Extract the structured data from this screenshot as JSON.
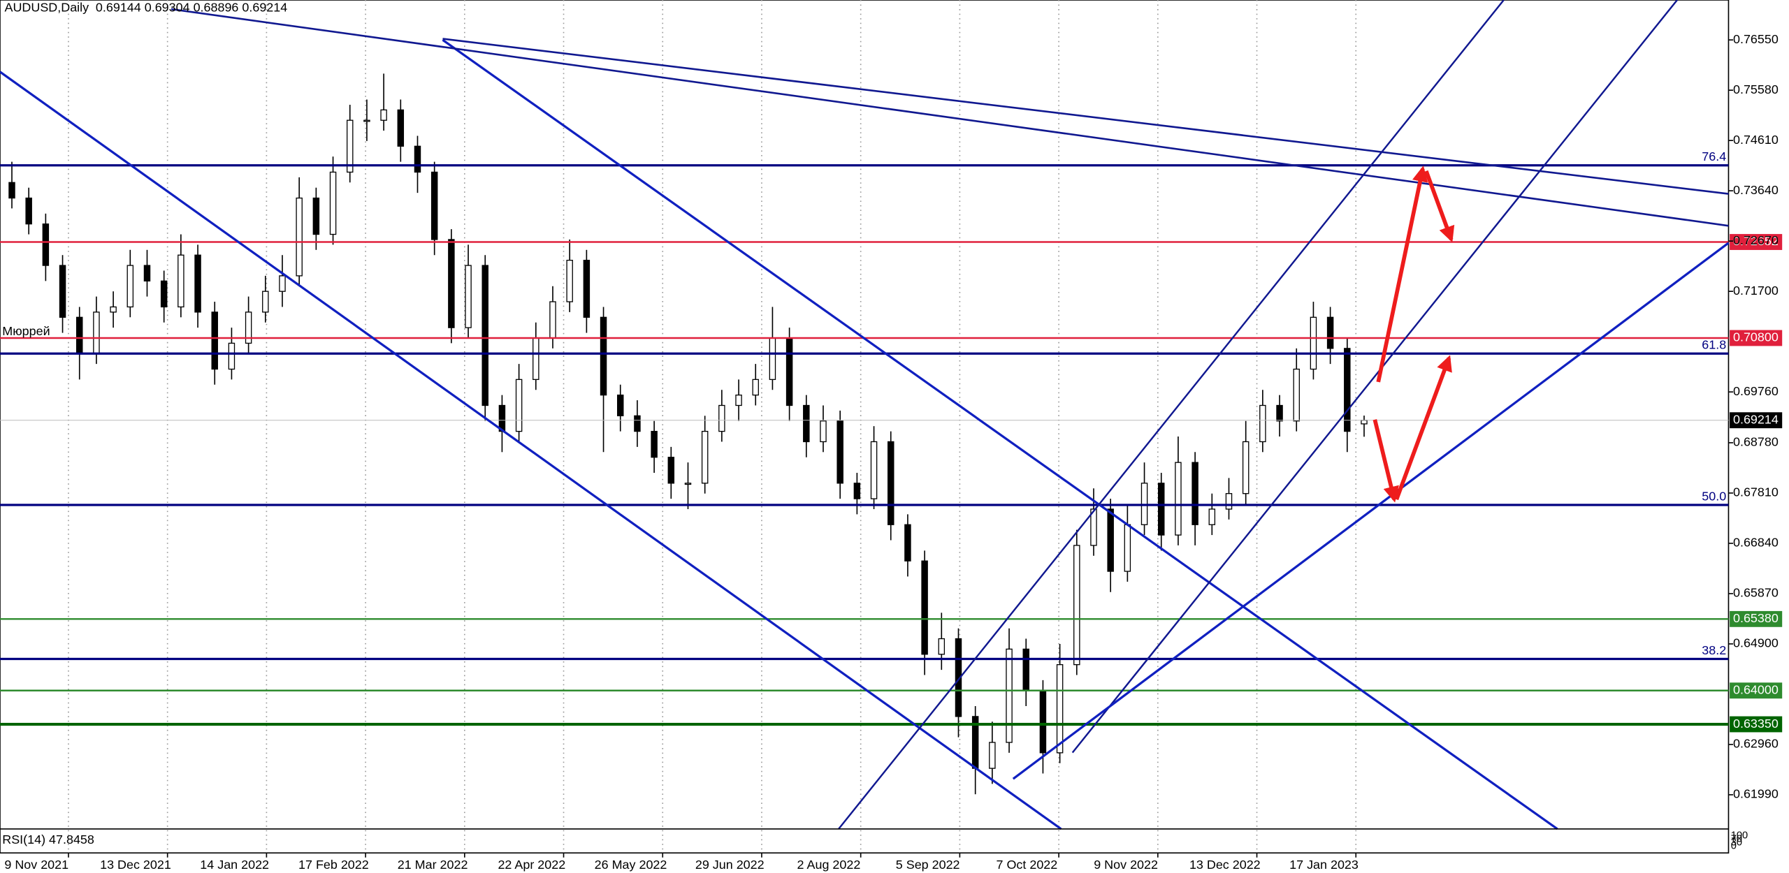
{
  "header": {
    "symbol": "AUDUSD,Daily",
    "ohlc": "0.69144 0.69304 0.68896 0.69214"
  },
  "chart_data": {
    "type": "candlestick",
    "candles": [
      [
        0.738,
        0.742,
        0.733,
        0.735
      ],
      [
        0.735,
        0.737,
        0.728,
        0.73
      ],
      [
        0.73,
        0.732,
        0.719,
        0.722
      ],
      [
        0.722,
        0.724,
        0.709,
        0.712
      ],
      [
        0.712,
        0.714,
        0.7,
        0.705
      ],
      [
        0.705,
        0.716,
        0.703,
        0.713
      ],
      [
        0.713,
        0.717,
        0.71,
        0.714
      ],
      [
        0.714,
        0.725,
        0.712,
        0.722
      ],
      [
        0.722,
        0.725,
        0.716,
        0.719
      ],
      [
        0.719,
        0.721,
        0.711,
        0.714
      ],
      [
        0.714,
        0.728,
        0.712,
        0.724
      ],
      [
        0.724,
        0.726,
        0.71,
        0.713
      ],
      [
        0.713,
        0.715,
        0.699,
        0.702
      ],
      [
        0.702,
        0.71,
        0.7,
        0.707
      ],
      [
        0.707,
        0.716,
        0.705,
        0.713
      ],
      [
        0.713,
        0.72,
        0.711,
        0.717
      ],
      [
        0.717,
        0.724,
        0.714,
        0.72
      ],
      [
        0.72,
        0.739,
        0.718,
        0.735
      ],
      [
        0.735,
        0.737,
        0.725,
        0.728
      ],
      [
        0.728,
        0.743,
        0.726,
        0.74
      ],
      [
        0.74,
        0.753,
        0.738,
        0.75
      ],
      [
        0.75,
        0.754,
        0.746,
        0.75
      ],
      [
        0.75,
        0.759,
        0.748,
        0.752
      ],
      [
        0.752,
        0.754,
        0.742,
        0.745
      ],
      [
        0.745,
        0.747,
        0.736,
        0.74
      ],
      [
        0.74,
        0.742,
        0.724,
        0.727
      ],
      [
        0.727,
        0.729,
        0.707,
        0.71
      ],
      [
        0.71,
        0.726,
        0.708,
        0.722
      ],
      [
        0.722,
        0.724,
        0.692,
        0.695
      ],
      [
        0.695,
        0.697,
        0.686,
        0.69
      ],
      [
        0.69,
        0.703,
        0.688,
        0.7
      ],
      [
        0.7,
        0.711,
        0.698,
        0.708
      ],
      [
        0.708,
        0.718,
        0.706,
        0.715
      ],
      [
        0.715,
        0.727,
        0.713,
        0.723
      ],
      [
        0.723,
        0.725,
        0.709,
        0.712
      ],
      [
        0.712,
        0.714,
        0.686,
        0.697
      ],
      [
        0.697,
        0.699,
        0.69,
        0.693
      ],
      [
        0.693,
        0.696,
        0.687,
        0.69
      ],
      [
        0.69,
        0.692,
        0.682,
        0.685
      ],
      [
        0.685,
        0.687,
        0.677,
        0.68
      ],
      [
        0.68,
        0.684,
        0.675,
        0.68
      ],
      [
        0.68,
        0.693,
        0.678,
        0.69
      ],
      [
        0.69,
        0.698,
        0.688,
        0.695
      ],
      [
        0.695,
        0.7,
        0.692,
        0.697
      ],
      [
        0.697,
        0.703,
        0.695,
        0.7
      ],
      [
        0.7,
        0.714,
        0.698,
        0.708
      ],
      [
        0.708,
        0.71,
        0.692,
        0.695
      ],
      [
        0.695,
        0.697,
        0.685,
        0.688
      ],
      [
        0.688,
        0.695,
        0.686,
        0.692
      ],
      [
        0.692,
        0.694,
        0.677,
        0.68
      ],
      [
        0.68,
        0.682,
        0.674,
        0.677
      ],
      [
        0.677,
        0.691,
        0.675,
        0.688
      ],
      [
        0.688,
        0.69,
        0.669,
        0.672
      ],
      [
        0.672,
        0.674,
        0.662,
        0.665
      ],
      [
        0.665,
        0.667,
        0.643,
        0.647
      ],
      [
        0.647,
        0.655,
        0.644,
        0.65
      ],
      [
        0.65,
        0.652,
        0.631,
        0.635
      ],
      [
        0.635,
        0.637,
        0.62,
        0.625
      ],
      [
        0.625,
        0.634,
        0.622,
        0.63
      ],
      [
        0.63,
        0.652,
        0.628,
        0.648
      ],
      [
        0.648,
        0.65,
        0.637,
        0.64
      ],
      [
        0.64,
        0.642,
        0.624,
        0.628
      ],
      [
        0.628,
        0.649,
        0.626,
        0.645
      ],
      [
        0.645,
        0.671,
        0.643,
        0.668
      ],
      [
        0.668,
        0.679,
        0.666,
        0.675
      ],
      [
        0.675,
        0.677,
        0.659,
        0.663
      ],
      [
        0.663,
        0.676,
        0.661,
        0.672
      ],
      [
        0.672,
        0.684,
        0.67,
        0.68
      ],
      [
        0.68,
        0.682,
        0.667,
        0.67
      ],
      [
        0.67,
        0.689,
        0.668,
        0.684
      ],
      [
        0.684,
        0.686,
        0.668,
        0.672
      ],
      [
        0.672,
        0.678,
        0.67,
        0.675
      ],
      [
        0.675,
        0.681,
        0.673,
        0.678
      ],
      [
        0.678,
        0.692,
        0.676,
        0.688
      ],
      [
        0.688,
        0.698,
        0.686,
        0.695
      ],
      [
        0.695,
        0.697,
        0.689,
        0.692
      ],
      [
        0.692,
        0.706,
        0.69,
        0.702
      ],
      [
        0.702,
        0.715,
        0.7,
        0.712
      ],
      [
        0.712,
        0.714,
        0.703,
        0.706
      ],
      [
        0.706,
        0.708,
        0.686,
        0.69
      ],
      [
        0.69144,
        0.69304,
        0.68896,
        0.69214
      ]
    ],
    "ylim": [
      0.6133,
      0.7732
    ],
    "yticks": [
      {
        "value": 0.7655,
        "label": "0.76550"
      },
      {
        "value": 0.7558,
        "label": "0.75580"
      },
      {
        "value": 0.7461,
        "label": "0.74610"
      },
      {
        "value": 0.7364,
        "label": "0.73640"
      },
      {
        "value": 0.7267,
        "label": "0.72670"
      },
      {
        "value": 0.717,
        "label": "0.71700"
      },
      {
        "value": 0.6976,
        "label": "0.69760"
      },
      {
        "value": 0.6878,
        "label": "0.68780"
      },
      {
        "value": 0.6781,
        "label": "0.67810"
      },
      {
        "value": 0.6684,
        "label": "0.66840"
      },
      {
        "value": 0.6587,
        "label": "0.65870"
      },
      {
        "value": 0.649,
        "label": "0.64900"
      },
      {
        "value": 0.6296,
        "label": "0.62960"
      },
      {
        "value": 0.6199,
        "label": "0.61990"
      }
    ],
    "categories": [
      "9 Nov 2021",
      "13 Dec 2021",
      "14 Jan 2022",
      "17 Feb 2022",
      "21 Mar 2022",
      "22 Apr 2022",
      "26 May 2022",
      "29 Jun 2022",
      "2 Aug 2022",
      "5 Sep 2022",
      "7 Oct 2022",
      "9 Nov 2022",
      "13 Dec 2022",
      "17 Jan 2023"
    ],
    "fib_levels": [
      {
        "name": "76.4",
        "value": 0.7413
      },
      {
        "name": "61.8",
        "value": 0.705
      },
      {
        "name": "50.0",
        "value": 0.6758
      },
      {
        "name": "38.2",
        "value": 0.6461
      }
    ],
    "price_levels": [
      {
        "value": 0.72652,
        "label": "0.72652",
        "color": "#e0203c"
      },
      {
        "value": 0.708,
        "label": "0.70800",
        "color": "#e0203c"
      },
      {
        "value": 0.6538,
        "label": "0.65380",
        "color": "#2e8b2e"
      },
      {
        "value": 0.64,
        "label": "0.64000",
        "color": "#2e8b2e"
      },
      {
        "value": 0.6335,
        "label": "0.63350",
        "color": "#006400"
      }
    ],
    "current_price": 0.69214,
    "murray_label": "Мюррей",
    "rsi": {
      "label": "RSI(14) 47.8458",
      "scale": [
        "100",
        "70",
        "30",
        "0"
      ]
    }
  }
}
